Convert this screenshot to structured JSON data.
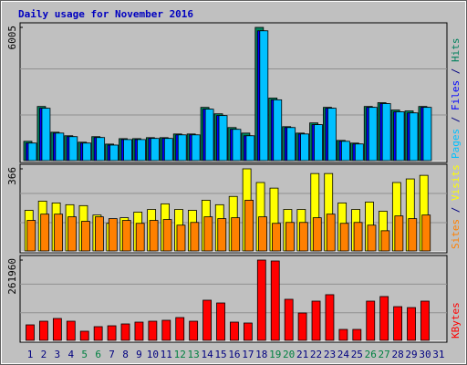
{
  "chart_data": [
    {
      "type": "bar",
      "title": "Daily usage for November 2016",
      "ylim": [
        0,
        6005
      ],
      "yticks": [
        6005
      ],
      "legend_separator": " / ",
      "series": [
        {
          "name": "Hits",
          "color": "#00805c",
          "values": [
            870,
            2440,
            1280,
            1120,
            830,
            1080,
            745,
            990,
            990,
            1035,
            1035,
            1200,
            1200,
            2400,
            2110,
            1490,
            1240,
            6005,
            2820,
            1530,
            1240,
            1700,
            2400,
            910,
            790,
            2440,
            2610,
            2280,
            2240,
            2440,
            null
          ]
        },
        {
          "name": "Files",
          "color": "#0000ff",
          "values": [
            790,
            2360,
            1240,
            1080,
            790,
            1040,
            700,
            950,
            950,
            1000,
            1000,
            1160,
            1160,
            2320,
            2030,
            1410,
            1120,
            5850,
            2740,
            1490,
            1200,
            1620,
            2360,
            870,
            750,
            2400,
            2570,
            2200,
            2150,
            2400,
            null
          ]
        },
        {
          "name": "Pages",
          "color": "#00c0ff",
          "values": [
            790,
            2360,
            1240,
            1080,
            790,
            1040,
            700,
            950,
            950,
            1000,
            1000,
            1160,
            1160,
            2320,
            2030,
            1410,
            1120,
            5850,
            2740,
            1490,
            1200,
            1620,
            2360,
            870,
            750,
            2400,
            2570,
            2200,
            2150,
            2400,
            null
          ]
        }
      ]
    },
    {
      "type": "bar",
      "ylim": [
        0,
        366
      ],
      "yticks": [
        366
      ],
      "legend_separator": " / ",
      "series": [
        {
          "name": "Visits",
          "color": "#ffff00",
          "values": [
            181,
            222,
            214,
            206,
            202,
            160,
            123,
            148,
            173,
            185,
            210,
            185,
            181,
            226,
            206,
            243,
            366,
            305,
            280,
            185,
            185,
            345,
            345,
            214,
            185,
            218,
            177,
            305,
            321,
            337,
            null
          ]
        },
        {
          "name": "Sites",
          "color": "#ff8000",
          "values": [
            136,
            164,
            164,
            152,
            132,
            152,
            144,
            136,
            123,
            136,
            140,
            115,
            127,
            152,
            144,
            148,
            226,
            152,
            123,
            127,
            127,
            148,
            164,
            123,
            127,
            115,
            90,
            156,
            144,
            160,
            null
          ]
        }
      ]
    },
    {
      "type": "bar",
      "ylim": [
        0,
        261960
      ],
      "yticks": [
        261960
      ],
      "categories": [
        "1",
        "2",
        "3",
        "4",
        "5",
        "6",
        "7",
        "8",
        "9",
        "10",
        "11",
        "12",
        "13",
        "14",
        "15",
        "16",
        "17",
        "18",
        "19",
        "20",
        "21",
        "22",
        "23",
        "24",
        "25",
        "26",
        "27",
        "28",
        "29",
        "30",
        "31"
      ],
      "label_colors": [
        "#000080",
        "#000080",
        "#000080",
        "#000080",
        "#008040",
        "#008040",
        "#000080",
        "#000080",
        "#000080",
        "#000080",
        "#000080",
        "#008040",
        "#008040",
        "#000080",
        "#000080",
        "#000080",
        "#000080",
        "#000080",
        "#008040",
        "#008040",
        "#000080",
        "#000080",
        "#000080",
        "#000080",
        "#000080",
        "#008040",
        "#008040",
        "#000080",
        "#000080",
        "#000080",
        "#000080"
      ],
      "series": [
        {
          "name": "KBytes",
          "color": "#ff0000",
          "values": [
            50600,
            62500,
            71400,
            62500,
            29800,
            44700,
            47600,
            53600,
            59500,
            62500,
            65500,
            74400,
            62500,
            131000,
            122000,
            59500,
            56600,
            261960,
            259000,
            134000,
            89300,
            128000,
            149000,
            35700,
            35700,
            128000,
            143000,
            110000,
            107000,
            128000,
            null
          ]
        }
      ]
    }
  ]
}
